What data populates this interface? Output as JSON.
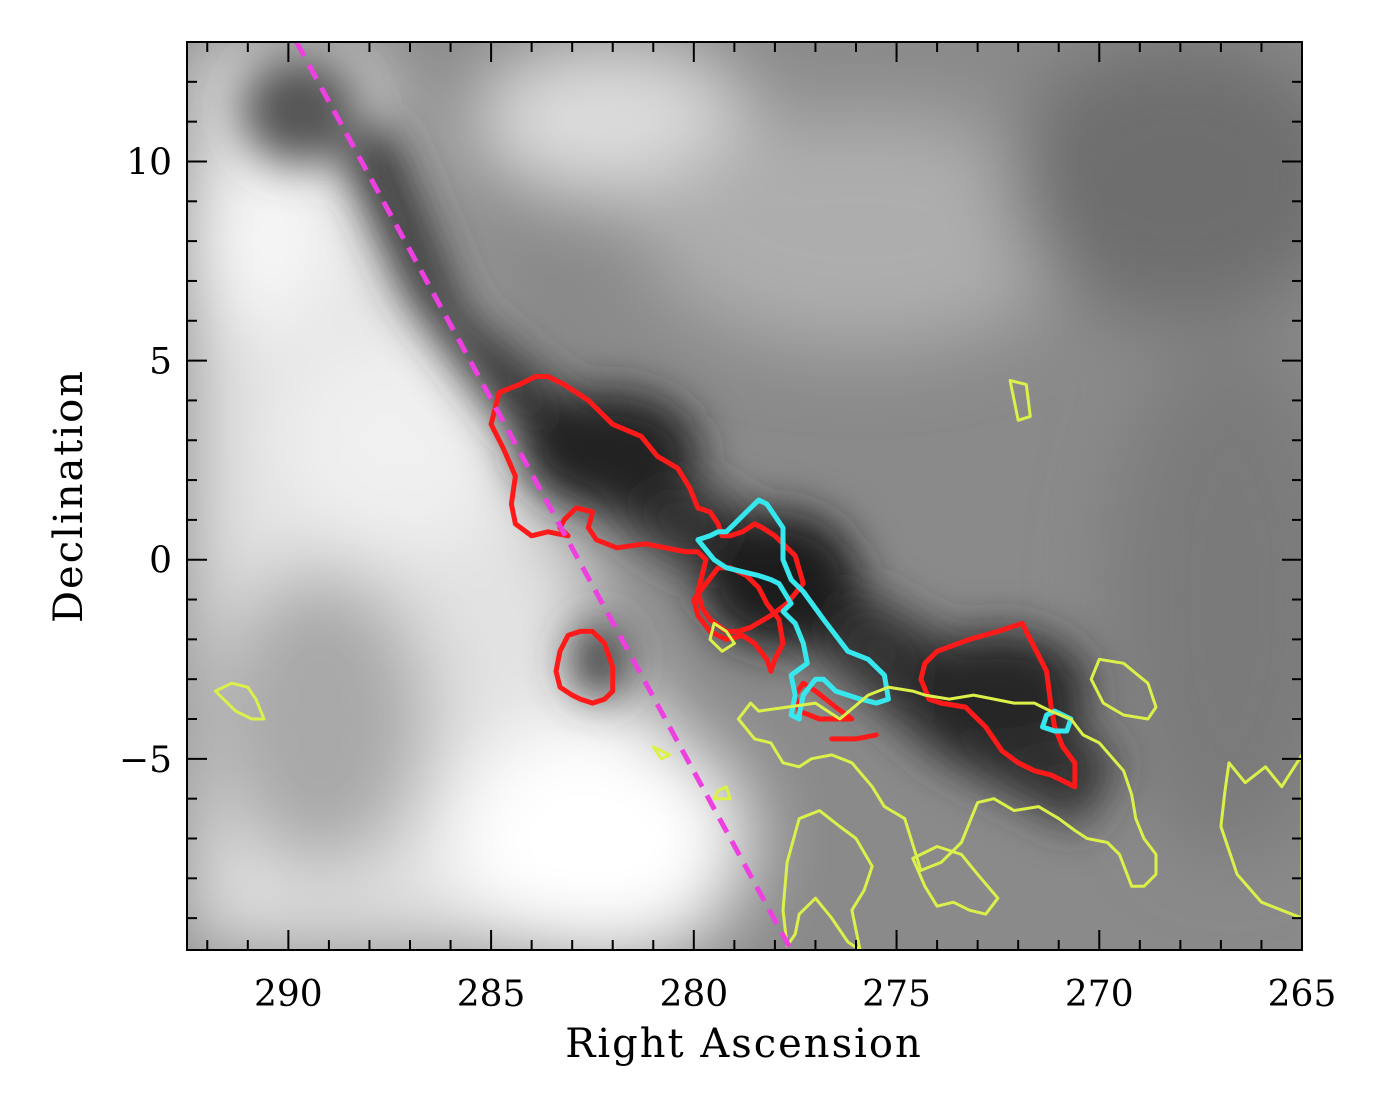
{
  "chart_data": {
    "type": "contour map",
    "xlabel": "Right Ascension",
    "ylabel": "Declination",
    "xlim": [
      292.5,
      265
    ],
    "ylim": [
      -9.8,
      13
    ],
    "xticks": [
      290,
      285,
      280,
      275,
      270,
      265
    ],
    "xtick_labels": [
      "290",
      "285",
      "280",
      "275",
      "270",
      "265"
    ],
    "yticks": [
      10,
      5,
      0,
      -5
    ],
    "ytick_labels": [
      "10",
      "5",
      "0",
      "−5"
    ],
    "background": "greyscale intensity map",
    "line": {
      "style": "dashed",
      "color": "#ee3fe0",
      "x": [
        289.8,
        277.6
      ],
      "y": [
        13.0,
        -9.8
      ]
    },
    "contours": [
      {
        "color": "#ff1a1a",
        "x": [
          284.3,
          283.9,
          283.6,
          283.2,
          282.6,
          282.0,
          281.3,
          280.9,
          280.4,
          280.1,
          279.9,
          279.6,
          279.4,
          279.3,
          279.1,
          278.8,
          278.5,
          278.3,
          278.0,
          277.5,
          277.3,
          277.7,
          278.1,
          278.6,
          278.9,
          279.2,
          279.6,
          279.8,
          279.9,
          279.8,
          279.7,
          279.9,
          280.2,
          280.7,
          281.2,
          281.9,
          282.4,
          282.6,
          282.5,
          282.9,
          283.2,
          283.3,
          283.1,
          283.6,
          284.0,
          284.4,
          284.5,
          284.4,
          284.7,
          285.0,
          284.8,
          284.3
        ],
        "y": [
          4.4,
          4.6,
          4.6,
          4.4,
          4.0,
          3.4,
          3.1,
          2.6,
          2.3,
          1.8,
          1.3,
          1.2,
          0.9,
          0.6,
          0.6,
          0.7,
          0.9,
          0.8,
          0.6,
          0.1,
          -0.6,
          -1.1,
          -1.4,
          -1.7,
          -1.8,
          -1.8,
          -1.5,
          -1.2,
          -0.8,
          -0.4,
          0.0,
          0.2,
          0.2,
          0.3,
          0.4,
          0.3,
          0.5,
          0.8,
          1.2,
          1.3,
          1.0,
          0.8,
          0.6,
          0.7,
          0.6,
          0.9,
          1.4,
          2.1,
          2.8,
          3.4,
          4.2,
          4.4
        ]
      },
      {
        "color": "#ff1a1a",
        "x": [
          278.2,
          277.9,
          277.8,
          278.0,
          278.1,
          278.2,
          278.5,
          278.8,
          279.2,
          279.6,
          279.9,
          280.0,
          279.7,
          279.4,
          279.1,
          278.7,
          278.4,
          278.2
        ],
        "y": [
          -1.1,
          -1.5,
          -2.1,
          -2.5,
          -2.8,
          -2.5,
          -2.1,
          -1.9,
          -2.0,
          -1.8,
          -1.4,
          -1.0,
          -0.6,
          -0.2,
          -0.2,
          -0.4,
          -0.7,
          -1.1
        ]
      },
      {
        "color": "#ff1a1a",
        "x": [
          282.8,
          282.5,
          282.2,
          282.0,
          282.0,
          282.2,
          282.5,
          282.8,
          283.0,
          283.3,
          283.4,
          283.3,
          283.1,
          282.8
        ],
        "y": [
          -1.8,
          -1.8,
          -2.1,
          -2.7,
          -3.3,
          -3.5,
          -3.6,
          -3.5,
          -3.4,
          -3.2,
          -2.8,
          -2.3,
          -1.9,
          -1.8
        ]
      },
      {
        "color": "#ff1a1a",
        "x": [
          274.0,
          273.2,
          272.5,
          271.9,
          271.7,
          271.5,
          271.3,
          271.2,
          271.1,
          270.9,
          270.6,
          270.6,
          271.2,
          271.6,
          272.0,
          272.4,
          272.8,
          273.3,
          273.9,
          274.2,
          274.4,
          274.3,
          274.1,
          274.0
        ],
        "y": [
          -2.3,
          -2.0,
          -1.8,
          -1.6,
          -2.0,
          -2.4,
          -2.8,
          -3.6,
          -4.2,
          -4.7,
          -5.1,
          -5.7,
          -5.4,
          -5.3,
          -5.1,
          -4.8,
          -4.2,
          -3.7,
          -3.6,
          -3.5,
          -3.0,
          -2.6,
          -2.4,
          -2.3
        ]
      },
      {
        "color": "#ff1a1a",
        "x": [
          276.1,
          276.9,
          277.4,
          277.5,
          277.3,
          277.0,
          276.5,
          276.1
        ],
        "y": [
          -4.0,
          -4.0,
          -3.8,
          -3.4,
          -3.1,
          -3.3,
          -3.7,
          -4.0
        ]
      },
      {
        "color": "#ff1a1a",
        "x": [
          276.6,
          276.0,
          275.5
        ],
        "y": [
          -4.5,
          -4.5,
          -4.4
        ]
      },
      {
        "color": "#36e8ee",
        "x": [
          279.9,
          279.6,
          279.4,
          279.2,
          279.0,
          278.7,
          278.4,
          278.2,
          278.0,
          277.8,
          277.8,
          277.6,
          277.3,
          276.8,
          276.2,
          275.7,
          275.3,
          275.2,
          275.5,
          275.9,
          276.5,
          276.8,
          277.0,
          277.3,
          277.4,
          277.4,
          277.6,
          277.5,
          277.6,
          277.2,
          277.3,
          277.5,
          277.8,
          277.6,
          277.9,
          278.1,
          278.4,
          278.8,
          279.2,
          279.5,
          279.9
        ],
        "y": [
          0.5,
          0.6,
          0.7,
          0.7,
          0.9,
          1.2,
          1.5,
          1.4,
          1.1,
          0.8,
          0.0,
          -0.5,
          -0.8,
          -1.5,
          -2.3,
          -2.5,
          -2.9,
          -3.5,
          -3.6,
          -3.5,
          -3.3,
          -3.0,
          -3.0,
          -3.4,
          -3.9,
          -4.0,
          -3.9,
          -3.4,
          -2.9,
          -2.6,
          -2.1,
          -1.6,
          -1.3,
          -1.1,
          -0.6,
          -0.5,
          -0.4,
          -0.3,
          -0.2,
          0.0,
          0.5
        ]
      },
      {
        "color": "#36e8ee",
        "x": [
          271.1,
          270.7,
          270.8,
          271.1,
          271.4,
          271.3,
          271.1
        ],
        "y": [
          -3.8,
          -4.0,
          -4.3,
          -4.3,
          -4.2,
          -3.9,
          -3.8
        ]
      },
      {
        "color": "#dcf04a",
        "x": [
          278.9,
          278.6,
          278.4,
          277.7,
          277.0,
          276.4,
          275.7,
          275.2,
          274.6,
          274.3,
          273.7,
          273.1,
          272.6,
          272.1,
          271.6,
          271.2,
          270.7,
          270.4,
          270.0,
          269.4,
          269.2,
          269.1,
          268.9,
          268.6,
          268.6,
          268.9,
          269.2,
          269.5,
          269.8,
          270.3,
          270.6,
          271.0,
          271.5,
          272.1,
          272.6,
          273.0,
          273.4,
          273.9,
          274.4,
          274.8,
          275.3,
          275.6,
          276.1,
          276.6,
          277.1,
          277.4,
          277.8,
          278.1,
          278.5,
          278.9
        ],
        "y": [
          -4.0,
          -3.6,
          -3.8,
          -3.7,
          -3.6,
          -4.0,
          -3.4,
          -3.2,
          -3.3,
          -3.4,
          -3.5,
          -3.4,
          -3.5,
          -3.6,
          -3.6,
          -3.8,
          -4.0,
          -4.4,
          -4.6,
          -5.3,
          -5.9,
          -6.5,
          -7.0,
          -7.4,
          -7.9,
          -8.2,
          -8.2,
          -7.4,
          -7.1,
          -7.0,
          -6.8,
          -6.5,
          -6.2,
          -6.3,
          -6.0,
          -6.1,
          -7.1,
          -7.6,
          -7.8,
          -6.5,
          -6.2,
          -5.7,
          -5.1,
          -4.9,
          -5.0,
          -5.2,
          -5.1,
          -4.6,
          -4.5,
          -4.0
        ]
      },
      {
        "color": "#dcf04a",
        "x": [
          277.4,
          276.9,
          276.4,
          276.0,
          275.6,
          275.8,
          276.1,
          276.0,
          275.9,
          276.2,
          276.6,
          277.0,
          277.4,
          277.5,
          277.7,
          277.8,
          277.7,
          277.4
        ],
        "y": [
          -6.5,
          -6.3,
          -6.7,
          -7.0,
          -7.7,
          -8.3,
          -8.8,
          -9.3,
          -9.8,
          -9.6,
          -9.0,
          -8.5,
          -8.9,
          -9.4,
          -9.7,
          -8.8,
          -7.6,
          -6.5
        ]
      },
      {
        "color": "#dcf04a",
        "x": [
          274.6,
          274.0,
          273.4,
          273.0,
          272.5,
          272.8,
          273.2,
          273.6,
          274.0,
          274.3,
          274.6
        ],
        "y": [
          -7.5,
          -7.2,
          -7.4,
          -7.9,
          -8.5,
          -8.9,
          -8.8,
          -8.6,
          -8.7,
          -8.2,
          -7.5
        ]
      },
      {
        "color": "#dcf04a",
        "x": [
          270.0,
          269.4,
          268.8,
          268.6,
          268.8,
          269.4,
          269.9,
          270.2,
          270.0
        ],
        "y": [
          -2.5,
          -2.6,
          -3.1,
          -3.7,
          -4.0,
          -3.9,
          -3.6,
          -3.0,
          -2.5
        ]
      },
      {
        "color": "#dcf04a",
        "x": [
          266.8,
          266.4,
          265.9,
          265.5,
          265.0,
          265.0,
          265.5,
          266.0,
          266.6,
          266.8,
          267.0,
          266.9,
          266.8
        ],
        "y": [
          -5.1,
          -5.6,
          -5.2,
          -5.7,
          -4.9,
          -9.0,
          -8.8,
          -8.6,
          -7.9,
          -7.3,
          -6.7,
          -5.8,
          -5.1
        ]
      },
      {
        "color": "#dcf04a",
        "x": [
          291.4,
          291.0,
          290.8,
          290.6,
          290.9,
          291.3,
          291.6,
          291.8,
          291.4
        ],
        "y": [
          -3.1,
          -3.2,
          -3.5,
          -4.0,
          -4.0,
          -3.8,
          -3.5,
          -3.3,
          -3.1
        ]
      },
      {
        "color": "#dcf04a",
        "x": [
          279.5,
          279.2,
          279.0,
          279.3,
          279.6,
          279.5
        ],
        "y": [
          -1.6,
          -1.8,
          -2.1,
          -2.3,
          -2.0,
          -1.6
        ]
      },
      {
        "color": "#dcf04a",
        "x": [
          281.0,
          280.6,
          280.8,
          281.0
        ],
        "y": [
          -4.7,
          -4.9,
          -5.0,
          -4.7
        ]
      },
      {
        "color": "#dcf04a",
        "x": [
          272.2,
          271.8,
          271.7,
          272.0,
          272.2
        ],
        "y": [
          4.5,
          4.4,
          3.6,
          3.5,
          4.5
        ]
      },
      {
        "color": "#dcf04a",
        "x": [
          279.4,
          279.2,
          279.1,
          279.5,
          279.4
        ],
        "y": [
          -5.8,
          -5.7,
          -6.0,
          -6.0,
          -5.8
        ]
      }
    ]
  }
}
